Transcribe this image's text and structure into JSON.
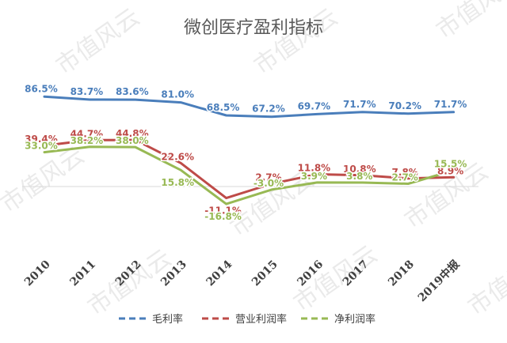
{
  "chart_data": {
    "type": "line",
    "title": "微创医疗盈利指标",
    "categories": [
      "2010",
      "2011",
      "2012",
      "2013",
      "2014",
      "2015",
      "2016",
      "2017",
      "2018",
      "2019中报"
    ],
    "series": [
      {
        "name": "毛利率",
        "color": "#4a7ebb",
        "values": [
          86.5,
          83.7,
          83.6,
          81.0,
          68.5,
          67.2,
          69.7,
          71.7,
          70.2,
          71.7
        ],
        "labels": [
          "86.5%",
          "83.7%",
          "83.6%",
          "81.0%",
          "68.5%",
          "67.2%",
          "69.7%",
          "71.7%",
          "70.2%",
          "71.7%"
        ]
      },
      {
        "name": "营业利润率",
        "color": "#be4b48",
        "values": [
          39.4,
          44.7,
          44.8,
          22.6,
          -11.1,
          2.7,
          11.8,
          10.8,
          7.8,
          8.9
        ],
        "labels": [
          "39.4%",
          "44.7%",
          "44.8%",
          "22.6%",
          "-11.1%",
          "2.7%",
          "11.8%",
          "10.8%",
          "7.8%",
          "8.9%"
        ]
      },
      {
        "name": "净利润率",
        "color": "#98b954",
        "values": [
          33.0,
          38.2,
          38.0,
          15.8,
          -16.8,
          -3.0,
          3.9,
          3.8,
          2.7,
          15.5
        ],
        "labels": [
          "33.0%",
          "38.2%",
          "38.0%",
          "15.8%",
          "-16.8%",
          "-3.0%",
          "3.9%",
          "3.8%",
          "2.7%",
          "15.5%"
        ]
      }
    ],
    "ylim": [
      -20,
      90
    ],
    "legend_position": "bottom",
    "line_style": "dashed"
  },
  "watermark": "市值风云"
}
